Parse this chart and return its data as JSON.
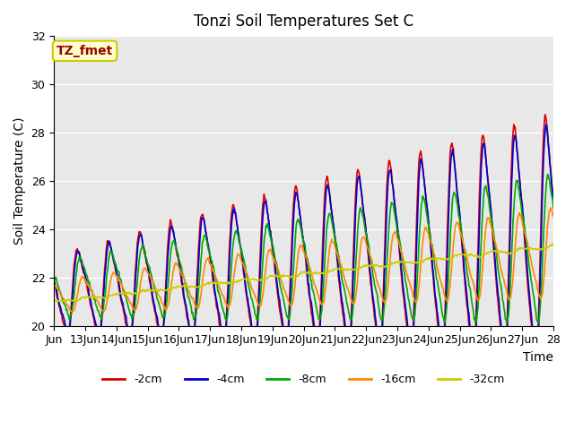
{
  "title": "Tonzi Soil Temperatures Set C",
  "xlabel": "Time",
  "ylabel": "Soil Temperature (C)",
  "xlim": [
    0,
    384
  ],
  "ylim": [
    20,
    32
  ],
  "yticks": [
    20,
    22,
    24,
    26,
    28,
    30,
    32
  ],
  "xtick_positions": [
    0,
    24,
    48,
    72,
    96,
    120,
    144,
    168,
    192,
    216,
    240,
    264,
    288,
    312,
    336,
    360,
    384
  ],
  "xtick_labels": [
    "Jun",
    "13Jun",
    "14Jun",
    "15Jun",
    "16Jun",
    "17Jun",
    "18Jun",
    "19Jun",
    "20Jun",
    "21Jun",
    "22Jun",
    "23Jun",
    "24Jun",
    "25Jun",
    "26Jun",
    "27Jun",
    "28"
  ],
  "annotation_text": "TZ_fmet",
  "annotation_bg": "#ffffcc",
  "annotation_edge": "#cccc00",
  "annotation_text_color": "#990000",
  "bg_color": "#e8e8e8",
  "series": [
    {
      "label": "-2cm",
      "color": "#dd0000",
      "lw": 1.2
    },
    {
      "label": "-4cm",
      "color": "#0000cc",
      "lw": 1.2
    },
    {
      "label": "-8cm",
      "color": "#00aa00",
      "lw": 1.2
    },
    {
      "label": "-16cm",
      "color": "#ff8800",
      "lw": 1.2
    },
    {
      "label": "-32cm",
      "color": "#cccc00",
      "lw": 1.2
    }
  ],
  "legend_ncol": 5,
  "grid_color": "#ffffff",
  "fig_bg": "#ffffff"
}
